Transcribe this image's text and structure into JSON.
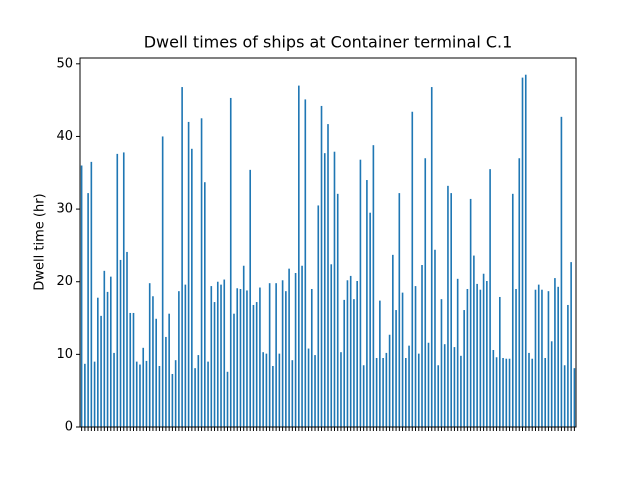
{
  "chart_data": {
    "type": "bar",
    "title": "Dwell times of ships at Container terminal C.1",
    "ylabel": "Dwell time (hr)",
    "color": "#1f77b4",
    "categories": [
      null,
      null,
      null,
      null,
      null,
      null,
      null,
      null,
      null,
      null,
      null,
      null,
      null,
      null,
      null,
      null,
      null,
      null,
      null,
      null,
      null,
      null,
      null,
      null,
      null,
      null,
      null,
      null,
      null,
      null,
      null,
      null,
      null,
      null,
      null,
      null,
      null,
      null,
      null,
      null,
      null,
      null,
      null,
      null,
      null,
      null,
      null,
      null,
      null,
      null,
      null,
      null,
      null,
      null,
      null,
      null,
      null,
      null,
      null,
      null,
      null,
      null,
      null,
      null,
      null,
      null,
      null,
      null,
      null,
      null,
      null,
      null,
      null,
      null,
      null,
      null,
      null,
      null,
      null,
      null,
      null,
      null,
      null,
      null,
      null,
      null,
      null,
      null,
      null,
      null,
      null,
      null,
      null,
      null,
      null,
      null,
      null,
      null,
      null,
      null,
      null,
      null,
      null,
      null,
      null,
      null,
      null,
      null,
      null,
      null,
      null,
      null,
      null,
      null,
      null,
      null,
      null,
      null,
      null,
      null,
      null,
      null,
      null,
      null,
      null,
      null,
      null,
      null,
      null,
      null,
      null,
      null,
      null,
      null,
      null,
      null,
      null,
      null,
      null,
      null,
      null,
      null,
      null,
      null,
      null,
      null,
      null,
      null,
      null,
      null,
      null,
      null,
      null
    ],
    "values": [
      36,
      8.7,
      32.2,
      36.5,
      9,
      17.8,
      15.3,
      21.5,
      18.6,
      20.7,
      10.2,
      37.6,
      23,
      37.8,
      24.1,
      15.7,
      15.7,
      9,
      8.6,
      10.9,
      9.1,
      19.8,
      18,
      14.9,
      8.4,
      40,
      12.4,
      15.6,
      7.3,
      9.2,
      18.7,
      46.8,
      19.6,
      42,
      38.3,
      8.1,
      9.9,
      42.5,
      33.7,
      9,
      19.4,
      17.2,
      20,
      19.6,
      20.3,
      7.6,
      45.3,
      15.6,
      19.1,
      19,
      22.2,
      18.8,
      35.4,
      16.8,
      17.2,
      19.2,
      10.3,
      10.1,
      19.8,
      8.4,
      19.8,
      10.1,
      20.2,
      18.7,
      21.8,
      9.2,
      21.2,
      47,
      22.2,
      45.1,
      10.8,
      19,
      9.9,
      30.5,
      44.2,
      37.7,
      41.7,
      22.4,
      37.9,
      32.1,
      10.3,
      17.5,
      20.2,
      20.8,
      17.6,
      20.1,
      36.8,
      8.5,
      34,
      29.5,
      38.8,
      9.5,
      17.4,
      9.5,
      10.2,
      12.7,
      23.7,
      16.1,
      32.2,
      18.5,
      9.5,
      11.2,
      43.4,
      19.4,
      10.1,
      22.3,
      37,
      11.6,
      46.8,
      24.4,
      8.5,
      17.6,
      11.4,
      33.2,
      32.2,
      11,
      20.4,
      9.8,
      16.1,
      19,
      31.4,
      23.6,
      19.7,
      18.9,
      21.1,
      20.1,
      35.5,
      10.6,
      9.6,
      17.9,
      9.5,
      9.4,
      9.4,
      32.1,
      19,
      37,
      48.1,
      48.5,
      10.2,
      9.4,
      18.9,
      19.6,
      18.9,
      9.5,
      18.7,
      11.8,
      20.5,
      19.3,
      42.7,
      8.5,
      16.8,
      22.7,
      8.1
    ],
    "ylim": [
      0,
      50.8
    ],
    "yticks": [
      0,
      10,
      20,
      30,
      40,
      50
    ],
    "grid": false
  }
}
